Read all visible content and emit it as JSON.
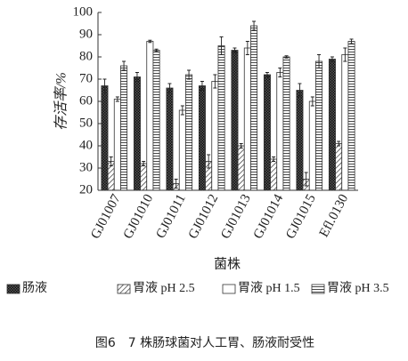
{
  "chart_data": {
    "type": "bar",
    "ylabel": "存活率/%",
    "xlabel": "菌株",
    "caption": "图6　7 株肠球菌对人工胃、肠液耐受性",
    "categories": [
      "GJ01007",
      "GJ01010",
      "GJ01011",
      "GJ01012",
      "GJ01013",
      "GJ01014",
      "GJ01015",
      "Efl.0130"
    ],
    "series": [
      {
        "name": "肠液",
        "color": "#333333",
        "pattern": "dots",
        "values": [
          67,
          71,
          66,
          67,
          83,
          72,
          65,
          79
        ],
        "errors": [
          3,
          2,
          2,
          2,
          1,
          1,
          3,
          1
        ]
      },
      {
        "name": "胃液 pH 2.5",
        "color": "#333333",
        "pattern": "diagonal",
        "values": [
          33,
          32,
          23,
          33,
          40,
          34,
          25,
          41
        ],
        "errors": [
          2,
          1,
          2,
          3,
          1,
          1,
          3,
          1
        ]
      },
      {
        "name": "胃液 pH 1.5",
        "color": "#333333",
        "pattern": "none",
        "values": [
          61,
          87,
          56,
          69,
          84,
          73,
          60,
          81
        ],
        "errors": [
          1,
          0.5,
          2,
          3,
          3,
          2,
          2,
          3
        ]
      },
      {
        "name": "胃液 pH 3.5",
        "color": "#333333",
        "pattern": "horizontal",
        "values": [
          76,
          83,
          72,
          85,
          94,
          80,
          78,
          87
        ],
        "errors": [
          2,
          0.5,
          2,
          4,
          2,
          0.5,
          3,
          1
        ]
      }
    ],
    "ylim": [
      20,
      100
    ],
    "yticks": [
      20,
      30,
      40,
      50,
      60,
      70,
      80,
      90,
      100
    ]
  }
}
